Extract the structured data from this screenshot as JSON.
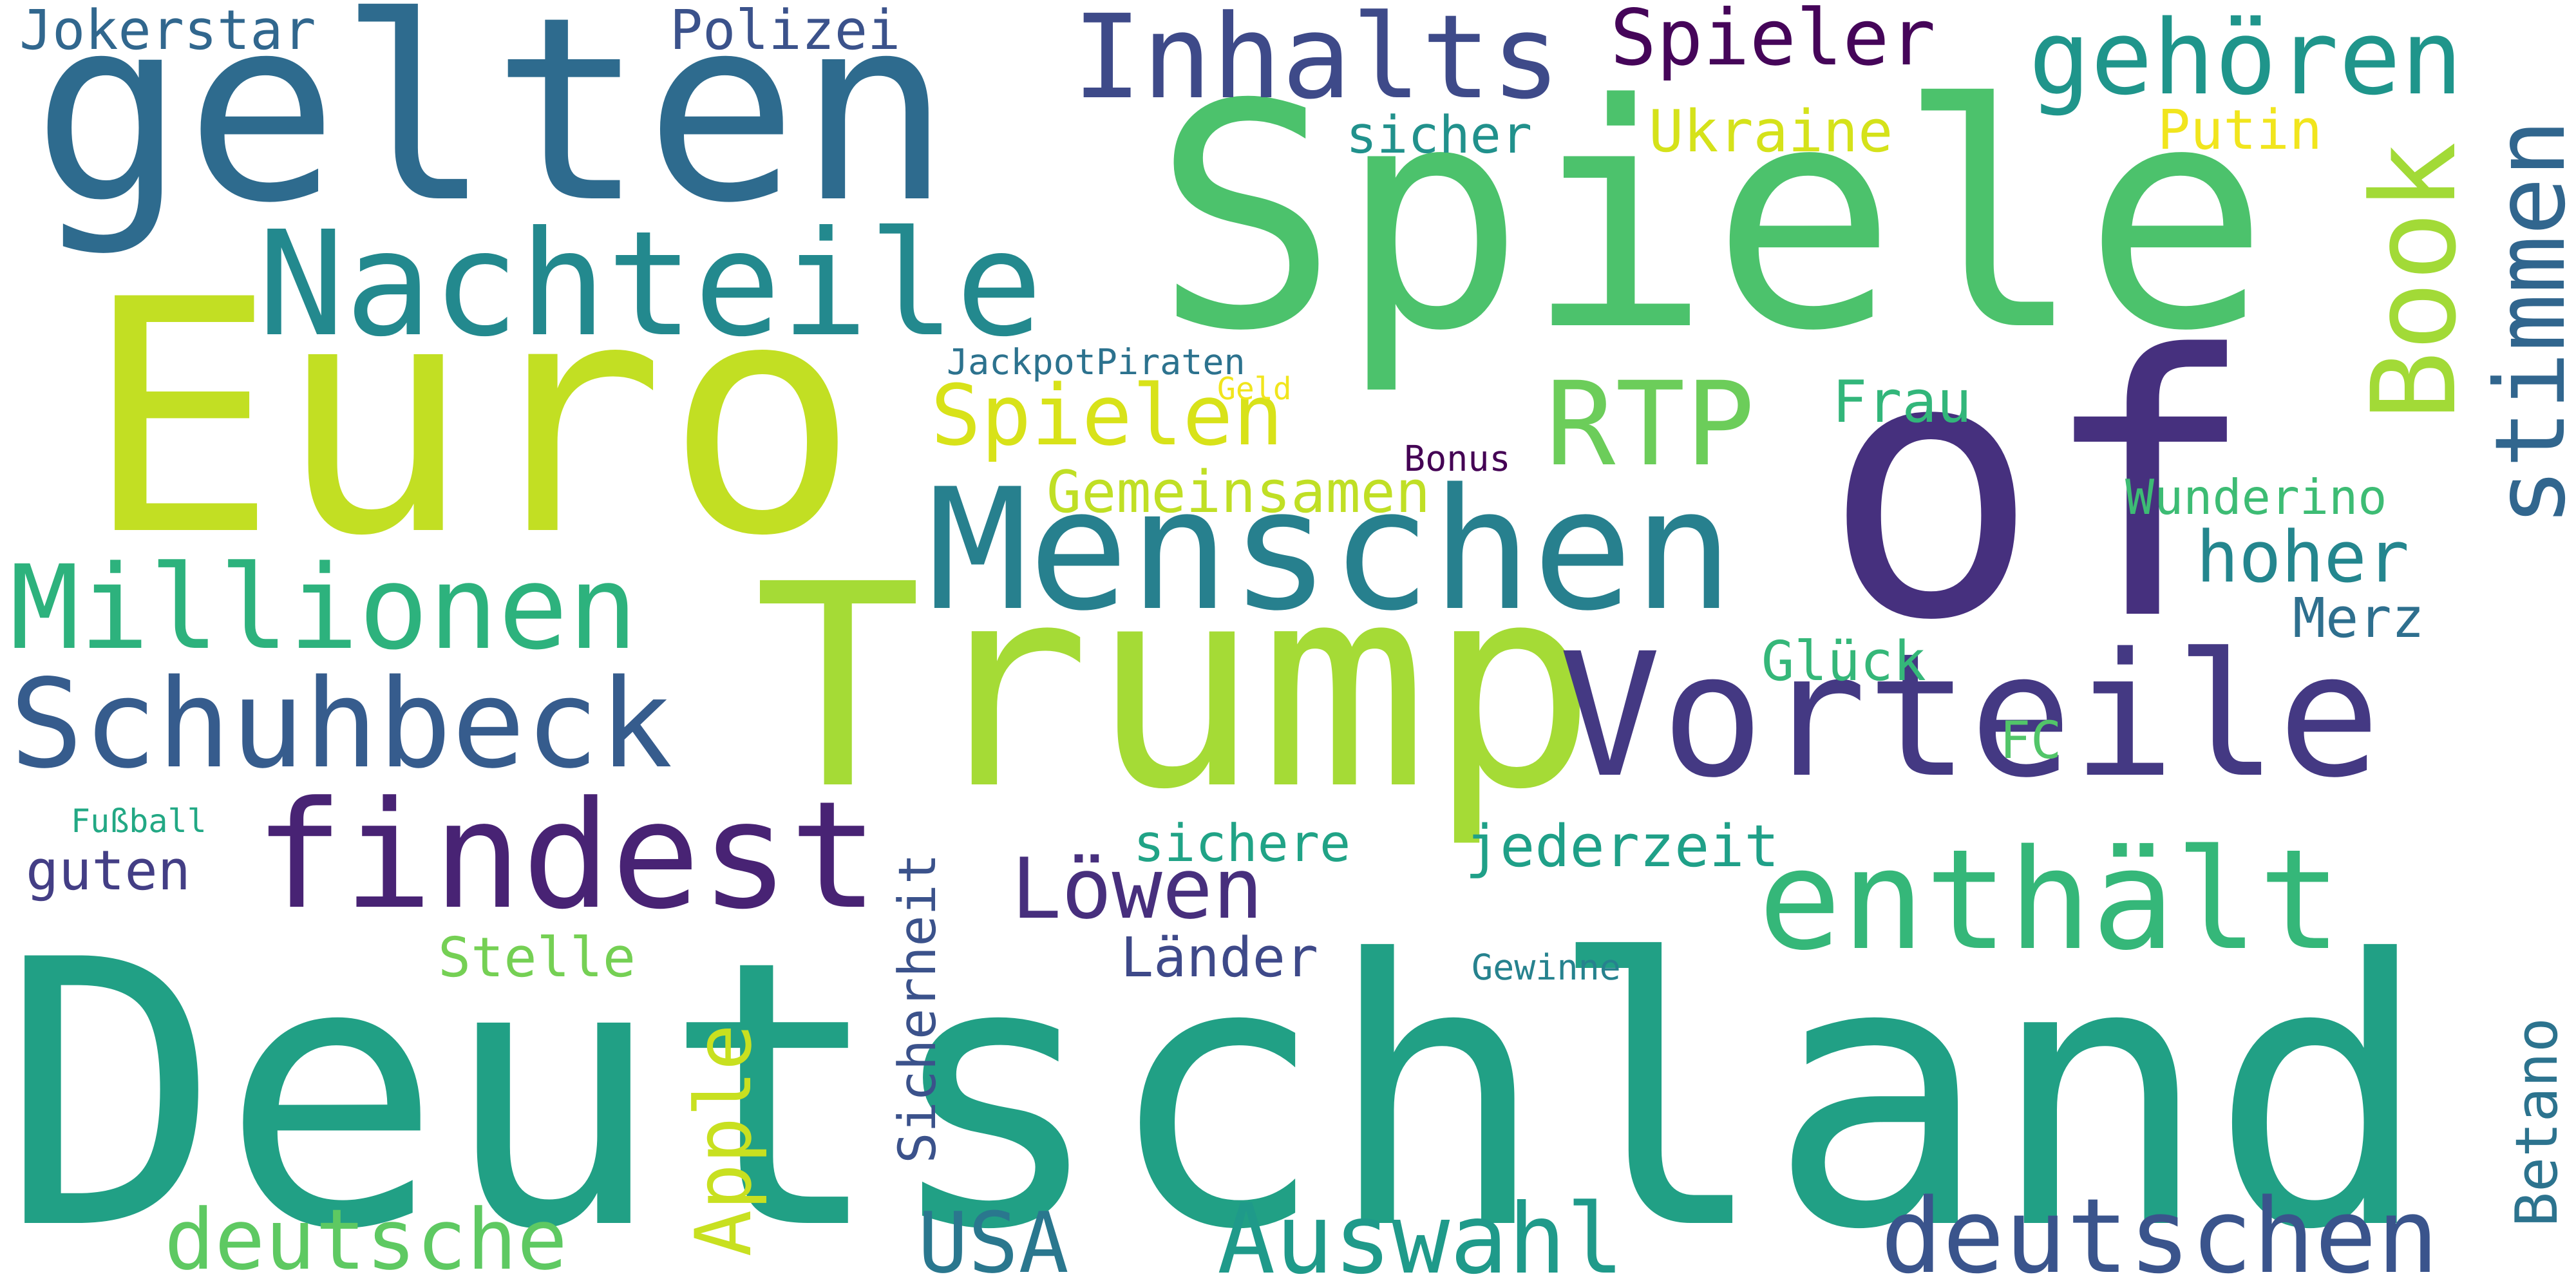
{
  "words": [
    {
      "text": "Deutschland",
      "color": "#21a085"
    },
    {
      "text": "Euro",
      "color": "#c2df23"
    },
    {
      "text": "Spiele",
      "color": "#4cc26c"
    },
    {
      "text": "Trump",
      "color": "#a5db36"
    },
    {
      "text": "of",
      "color": "#46307e"
    },
    {
      "text": "gelten",
      "color": "#2e6b8e"
    },
    {
      "text": "Menschen",
      "color": "#27808e"
    },
    {
      "text": "Vorteile",
      "color": "#443983"
    },
    {
      "text": "Nachteile",
      "color": "#23898e"
    },
    {
      "text": "findest",
      "color": "#482374"
    },
    {
      "text": "enthält",
      "color": "#35b779"
    },
    {
      "text": "Inhalts",
      "color": "#3e4a89"
    },
    {
      "text": "Millionen",
      "color": "#2db27d"
    },
    {
      "text": "Schuhbeck",
      "color": "#365c8d"
    },
    {
      "text": "deutschen",
      "color": "#3a548c"
    },
    {
      "text": "Auswahl",
      "color": "#1f9a8a"
    },
    {
      "text": "RTP",
      "color": "#6ccd5a"
    },
    {
      "text": "gehören",
      "color": "#1f958b"
    },
    {
      "text": "Spieler",
      "color": "#450559"
    },
    {
      "text": "Book",
      "color": "#a2da37"
    },
    {
      "text": "stimmen",
      "color": "#31668e"
    },
    {
      "text": "Spielen",
      "color": "#d8e219"
    },
    {
      "text": "Löwen",
      "color": "#472f7d"
    },
    {
      "text": "deutsche",
      "color": "#5ec962"
    },
    {
      "text": "USA",
      "color": "#2a778e"
    },
    {
      "text": "Apple",
      "color": "#c8e020"
    },
    {
      "text": "Sicherheit",
      "color": "#3b528b"
    },
    {
      "text": "Betano",
      "color": "#2c738e"
    },
    {
      "text": "Jokerstar",
      "color": "#31678e"
    },
    {
      "text": "Polizei",
      "color": "#3b528b"
    },
    {
      "text": "Ukraine",
      "color": "#d5e21a"
    },
    {
      "text": "Putin",
      "color": "#f1e51d"
    },
    {
      "text": "sicher",
      "color": "#21918c"
    },
    {
      "text": "JackpotPiraten",
      "color": "#2c728e"
    },
    {
      "text": "Geld",
      "color": "#f1e51d"
    },
    {
      "text": "Frau",
      "color": "#32b67a"
    },
    {
      "text": "Bonus",
      "color": "#440154"
    },
    {
      "text": "Gemeinsamen",
      "color": "#c0df25"
    },
    {
      "text": "Wunderino",
      "color": "#3dbc74"
    },
    {
      "text": "hoher",
      "color": "#24868e"
    },
    {
      "text": "Merz",
      "color": "#2e6f8e"
    },
    {
      "text": "Glück",
      "color": "#35b779"
    },
    {
      "text": "FC",
      "color": "#52c569"
    },
    {
      "text": "sichere",
      "color": "#20a386"
    },
    {
      "text": "jederzeit",
      "color": "#1fa088"
    },
    {
      "text": "guten",
      "color": "#433e85"
    },
    {
      "text": "Fußball",
      "color": "#22a884"
    },
    {
      "text": "Stelle",
      "color": "#75d054"
    },
    {
      "text": "Länder",
      "color": "#3e4989"
    },
    {
      "text": "Gewinne",
      "color": "#26828e"
    }
  ]
}
